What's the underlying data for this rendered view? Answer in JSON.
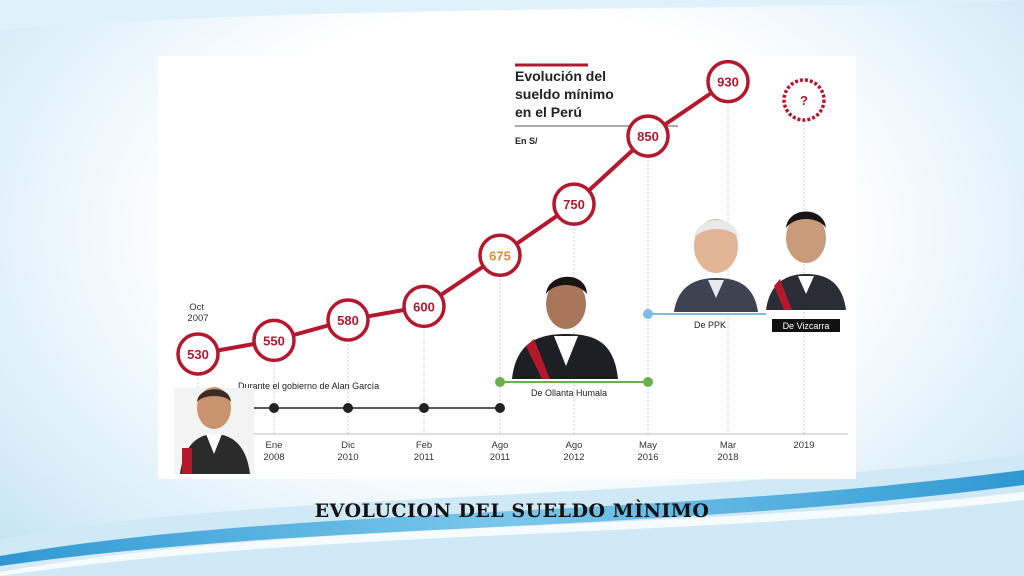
{
  "slide_caption": "EVOLUCION DEL SUELDO MÌNIMO",
  "colors": {
    "accent": "#b5182d",
    "highlight": "#e38b2c",
    "timeline_dark": "#222222",
    "timeline_green": "#6ab04c",
    "timeline_blue": "#7fbbe3"
  },
  "chart_data": {
    "type": "line",
    "title_lines": [
      "Evolución del",
      "sueldo mínimo",
      "en el Perú"
    ],
    "unit": "En S/",
    "categories": [
      "Oct 2007",
      "Ene 2008",
      "Dic 2010",
      "Feb 2011",
      "Ago 2011",
      "Ago 2012",
      "May 2016",
      "Mar 2018",
      "2019"
    ],
    "series": [
      {
        "values": [
          530,
          550,
          580,
          600,
          675,
          750,
          850,
          930,
          null
        ]
      }
    ],
    "point_labels": [
      "530",
      "550",
      "580",
      "600",
      "675",
      "750",
      "850",
      "930",
      "?"
    ],
    "top_annotation": "Oct\n2007",
    "tick_labels": [
      [
        "",
        ""
      ],
      [
        "Ene",
        "2008"
      ],
      [
        "Dic",
        "2010"
      ],
      [
        "Feb",
        "2011"
      ],
      [
        "Ago",
        "2011"
      ],
      [
        "Ago",
        "2012"
      ],
      [
        "May",
        "2016"
      ],
      [
        "Mar",
        "2018"
      ],
      [
        "2019",
        ""
      ]
    ],
    "periods": [
      {
        "label": "Durante el gobierno de Alan García"
      },
      {
        "label": "De Ollanta Humala"
      },
      {
        "label": "De PPK"
      },
      {
        "label": "De Vizcarra"
      }
    ]
  }
}
